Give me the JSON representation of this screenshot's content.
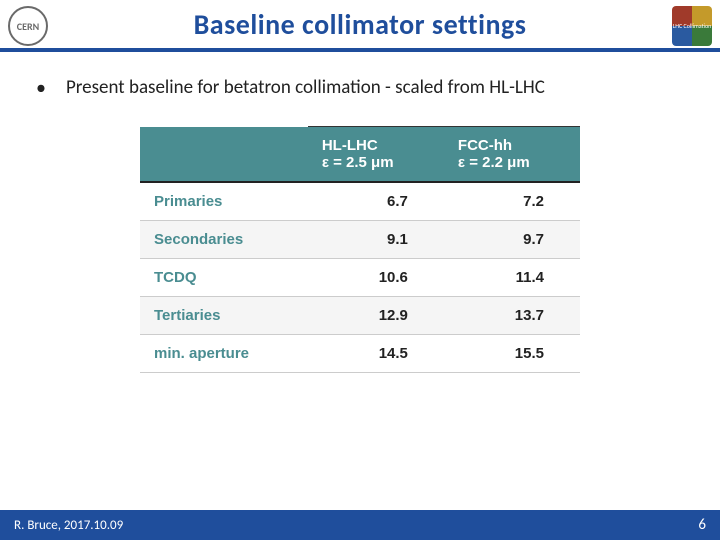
{
  "colors": {
    "title_text": "#1f4e9c",
    "title_underline": "#1f4e9c",
    "table_header_bg": "#4a8d91",
    "rowlabel_color": "#4a8d91",
    "footer_bg": "#1f4e9c",
    "border_row": "#cccccc",
    "alt_row": "#f5f5f5"
  },
  "logos": {
    "left_text": "CERN",
    "right_text": "LHC Collimation"
  },
  "title": "Baseline collimator settings",
  "bullet": "Present baseline for betatron collimation - scaled from HL-LHC",
  "table": {
    "columns": [
      {
        "name": "",
        "sub": ""
      },
      {
        "name": "HL-LHC",
        "sub": "ε = 2.5 μm"
      },
      {
        "name": "FCC-hh",
        "sub": "ε = 2.2 μm"
      }
    ],
    "rows": [
      {
        "label": "Primaries",
        "hl": "6.7",
        "fcc": "7.2"
      },
      {
        "label": "Secondaries",
        "hl": "9.1",
        "fcc": "9.7"
      },
      {
        "label": "TCDQ",
        "hl": "10.6",
        "fcc": "11.4"
      },
      {
        "label": "Tertiaries",
        "hl": "12.9",
        "fcc": "13.7"
      },
      {
        "label": "min. aperture",
        "hl": "14.5",
        "fcc": "15.5"
      }
    ]
  },
  "footer": {
    "author": "R. Bruce, 2017.10.09",
    "page": "6"
  }
}
